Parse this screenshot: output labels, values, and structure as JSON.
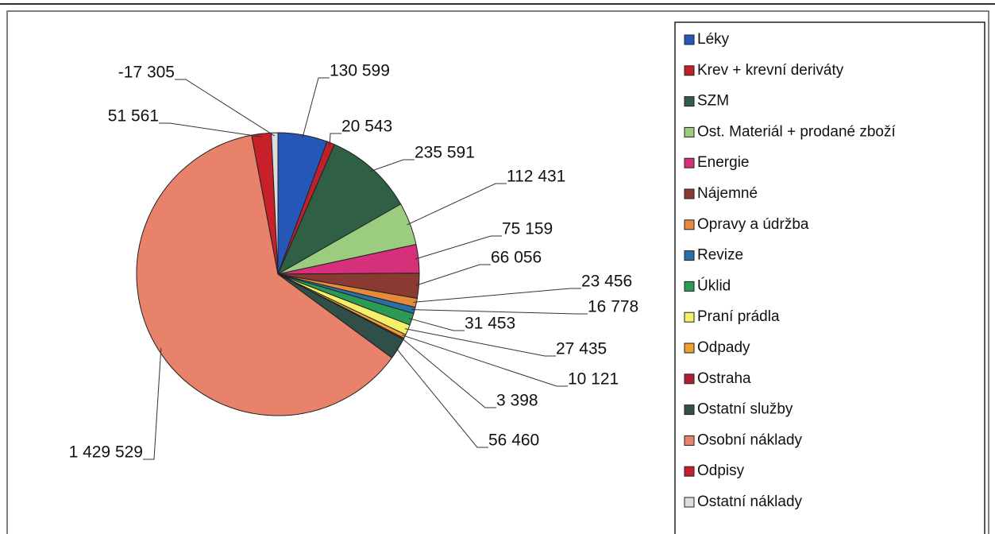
{
  "chart_data": {
    "type": "pie",
    "categories": [
      "Léky",
      "Krev + krevní deriváty",
      "SZM",
      "Ost. Materiál + prodané zboží",
      "Energie",
      "Nájemné",
      "Opravy a údržba",
      "Revize",
      "Úklid",
      "Praní prádla",
      "Odpady",
      "Ostraha",
      "Ostatní služby",
      "Osobní náklady",
      "Odpisy",
      "Ostatní náklady"
    ],
    "values": [
      130599,
      20543,
      235591,
      112431,
      75159,
      66056,
      23456,
      16778,
      31453,
      27435,
      10121,
      3398,
      56460,
      1429529,
      51561,
      -17305
    ],
    "value_labels": [
      "130 599",
      "20 543",
      "235 591",
      "112 431",
      "75 159",
      "66 056",
      "23 456",
      "16 778",
      "31 453",
      "27 435",
      "10 121",
      "3 398",
      "56 460",
      "1 429 529",
      "51 561",
      "-17 305"
    ],
    "colors": [
      "#2457b8",
      "#c0202a",
      "#2f5f45",
      "#9ccc7f",
      "#d6307a",
      "#8a3a32",
      "#e58b3a",
      "#2a6fa8",
      "#2a9a55",
      "#f5ef6a",
      "#f0a030",
      "#b02030",
      "#2f4f48",
      "#e8826a",
      "#c8202a",
      "#dddddd"
    ],
    "legend": "right"
  }
}
